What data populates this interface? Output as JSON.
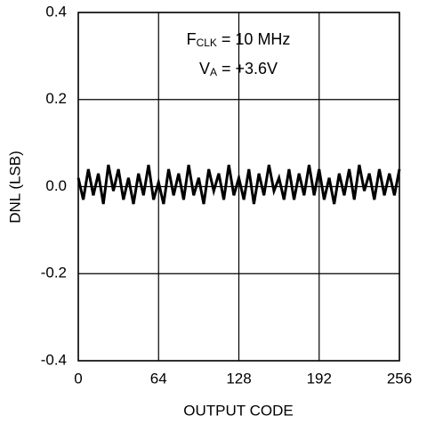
{
  "chart_data": {
    "type": "line",
    "xlabel": "OUTPUT CODE",
    "ylabel": "DNL (LSB)",
    "annotations": [
      {
        "text": "F",
        "subscript": "CLK",
        "rest": " = 10 MHz"
      },
      {
        "text": "V",
        "subscript": "A",
        "rest": " = +3.6V"
      }
    ],
    "x": [
      0,
      4,
      8,
      12,
      16,
      20,
      24,
      28,
      32,
      36,
      40,
      44,
      48,
      52,
      56,
      60,
      64,
      68,
      72,
      76,
      80,
      84,
      88,
      92,
      96,
      100,
      104,
      108,
      112,
      116,
      120,
      124,
      128,
      132,
      136,
      140,
      144,
      148,
      152,
      156,
      160,
      164,
      168,
      172,
      176,
      180,
      184,
      188,
      192,
      196,
      200,
      204,
      208,
      212,
      216,
      220,
      224,
      228,
      232,
      236,
      240,
      244,
      248,
      252,
      256
    ],
    "values": [
      0.02,
      -0.03,
      0.04,
      -0.02,
      0.03,
      -0.04,
      0.05,
      -0.01,
      0.04,
      -0.03,
      0.02,
      -0.04,
      0.03,
      -0.02,
      0.05,
      -0.03,
      0.01,
      -0.04,
      0.04,
      -0.02,
      0.03,
      -0.03,
      0.05,
      -0.02,
      0.02,
      -0.04,
      0.04,
      -0.01,
      0.03,
      -0.03,
      0.05,
      -0.02,
      0.02,
      -0.03,
      0.04,
      -0.04,
      0.03,
      -0.02,
      0.05,
      -0.01,
      0.02,
      -0.03,
      0.04,
      -0.03,
      0.03,
      -0.02,
      0.05,
      -0.02,
      0.04,
      -0.03,
      0.02,
      -0.04,
      0.03,
      -0.02,
      0.04,
      -0.03,
      0.05,
      -0.01,
      0.03,
      -0.03,
      0.04,
      -0.02,
      0.03,
      -0.02,
      0.04
    ],
    "color": "#000000",
    "xlim": [
      0,
      256
    ],
    "xticks": [
      0,
      64,
      128,
      192,
      256
    ],
    "ylim": [
      -0.4,
      0.4
    ],
    "yticks": [
      -0.4,
      -0.2,
      {
        "value": 0,
        "label": "0.0"
      },
      0.2,
      0.4
    ],
    "grid": true
  }
}
